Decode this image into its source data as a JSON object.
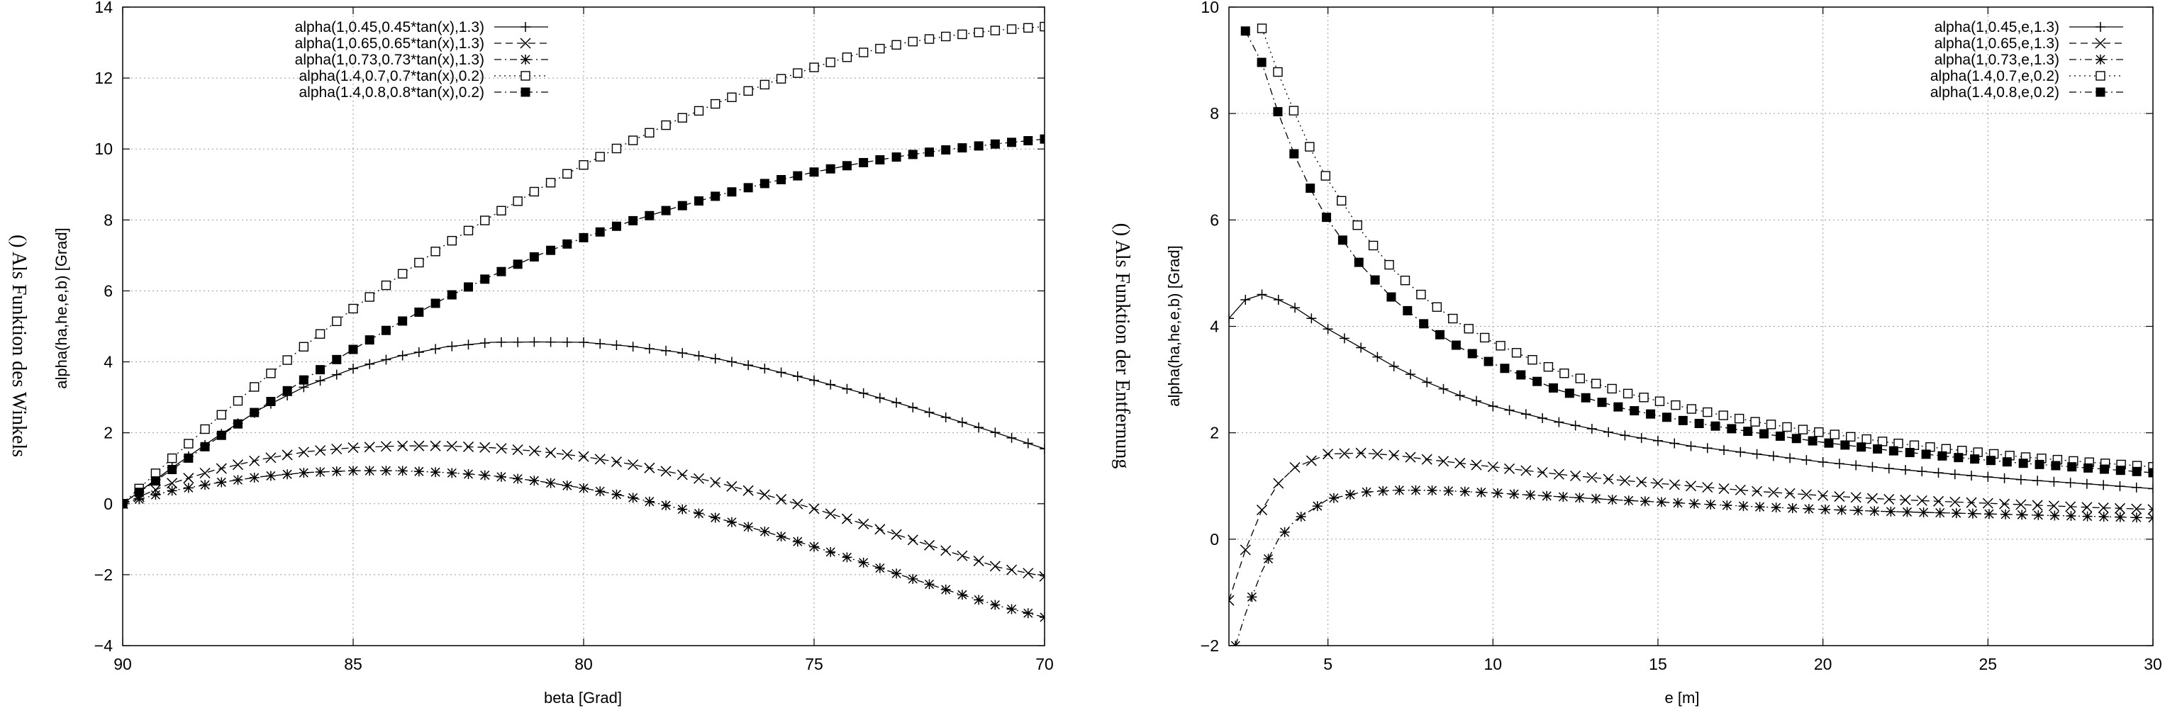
{
  "panels": [
    {
      "caption": "() Als Funktion des Winkels",
      "chart_data": {
        "type": "line",
        "xlabel": "beta [Grad]",
        "ylabel": "alpha(ha,he,e,b) [Grad]",
        "xlim": [
          90,
          70
        ],
        "ylim": [
          -4,
          14
        ],
        "x_reversed": true,
        "xticks": [
          90,
          85,
          80,
          75,
          70
        ],
        "yticks": [
          -4,
          -2,
          0,
          2,
          4,
          6,
          8,
          10,
          12,
          14
        ],
        "grid": true,
        "legend_position": "top-left",
        "series": [
          {
            "name": "alpha(1,0.45,0.45*tan(x),1.3)",
            "marker": "plus",
            "line": "solid",
            "x": [
              90,
              89,
              88,
              87,
              86,
              85,
              84,
              83,
              82,
              81,
              80,
              79,
              78,
              77,
              76,
              75,
              74,
              73,
              72,
              71,
              70
            ],
            "y": [
              0,
              0.95,
              1.85,
              2.68,
              3.33,
              3.81,
              4.16,
              4.42,
              4.55,
              4.56,
              4.55,
              4.44,
              4.28,
              4.06,
              3.79,
              3.48,
              3.14,
              2.77,
              2.38,
              1.98,
              1.55
            ]
          },
          {
            "name": "alpha(1,0.65,0.65*tan(x),1.3)",
            "marker": "cross",
            "line": "dashed",
            "x": [
              90,
              89,
              88,
              87,
              86,
              85,
              84,
              83,
              82,
              81,
              80,
              79,
              78,
              77,
              76,
              75,
              74,
              73,
              72,
              71,
              70
            ],
            "y": [
              0,
              0.55,
              0.95,
              1.25,
              1.47,
              1.58,
              1.63,
              1.63,
              1.58,
              1.48,
              1.33,
              1.12,
              0.86,
              0.56,
              0.23,
              -0.14,
              -0.54,
              -0.96,
              -1.38,
              -1.79,
              -2.05
            ]
          },
          {
            "name": "alpha(1,0.73,0.73*tan(x),1.3)",
            "marker": "star",
            "line": "dashdot",
            "x": [
              90,
              89,
              88,
              87,
              86,
              85,
              84,
              83,
              82,
              81,
              80,
              79,
              78,
              77,
              76,
              75,
              74,
              73,
              72,
              71,
              70
            ],
            "y": [
              0,
              0.35,
              0.58,
              0.76,
              0.88,
              0.93,
              0.93,
              0.88,
              0.79,
              0.64,
              0.44,
              0.19,
              -0.11,
              -0.44,
              -0.81,
              -1.21,
              -1.63,
              -2.06,
              -2.48,
              -2.88,
              -3.2
            ]
          },
          {
            "name": "alpha(1.4,0.7,0.7*tan(x),0.2)",
            "marker": "open-square",
            "line": "dotted",
            "x": [
              90,
              89,
              88,
              87,
              86,
              85,
              84,
              83,
              82,
              81,
              80,
              79,
              78,
              77,
              76,
              75,
              74,
              73,
              72,
              71,
              70
            ],
            "y": [
              0,
              1.2,
              2.35,
              3.45,
              4.5,
              5.5,
              6.42,
              7.3,
              8.1,
              8.85,
              9.55,
              10.2,
              10.8,
              11.35,
              11.85,
              12.3,
              12.7,
              13.0,
              13.2,
              13.35,
              13.45
            ]
          },
          {
            "name": "alpha(1.4,0.8,0.8*tan(x),0.2)",
            "marker": "filled-square",
            "line": "dashdot",
            "x": [
              90,
              89,
              88,
              87,
              86,
              85,
              84,
              83,
              82,
              81,
              80,
              79,
              78,
              77,
              76,
              75,
              74,
              73,
              72,
              71,
              70
            ],
            "y": [
              0,
              0.9,
              1.8,
              2.7,
              3.55,
              4.35,
              5.1,
              5.8,
              6.42,
              7.0,
              7.5,
              7.95,
              8.35,
              8.72,
              9.05,
              9.35,
              9.6,
              9.82,
              10.0,
              10.15,
              10.28
            ]
          }
        ]
      }
    },
    {
      "caption": "() Als Funktion der Entfernung",
      "chart_data": {
        "type": "line",
        "xlabel": "e [m]",
        "ylabel": "alpha(ha,he,e,b) [Grad]",
        "xlim": [
          2,
          30
        ],
        "ylim": [
          -2,
          10
        ],
        "xticks": [
          5,
          10,
          15,
          20,
          25,
          30
        ],
        "yticks": [
          -2,
          0,
          2,
          4,
          6,
          8,
          10
        ],
        "grid": true,
        "legend_position": "top-right",
        "series": [
          {
            "name": "alpha(1,0.45,e,1.3)",
            "marker": "plus",
            "line": "solid",
            "x": [
              2,
              2.5,
              3,
              3.5,
              4,
              5,
              6,
              7,
              8,
              9,
              10,
              12,
              14,
              16,
              18,
              20,
              22,
              24,
              26,
              28,
              30
            ],
            "y": [
              4.15,
              4.5,
              4.6,
              4.5,
              4.35,
              3.95,
              3.6,
              3.25,
              2.95,
              2.7,
              2.5,
              2.2,
              1.95,
              1.75,
              1.6,
              1.45,
              1.33,
              1.22,
              1.12,
              1.04,
              0.95
            ]
          },
          {
            "name": "alpha(1,0.65,e,1.3)",
            "marker": "cross",
            "line": "dashed",
            "x": [
              2,
              2.5,
              3,
              3.5,
              4,
              5,
              6,
              7,
              8,
              9,
              10,
              12,
              14,
              16,
              18,
              20,
              22,
              24,
              26,
              28,
              30
            ],
            "y": [
              -1.15,
              -0.2,
              0.55,
              1.05,
              1.35,
              1.6,
              1.62,
              1.58,
              1.5,
              1.43,
              1.36,
              1.22,
              1.1,
              1.0,
              0.9,
              0.82,
              0.75,
              0.7,
              0.65,
              0.6,
              0.56
            ]
          },
          {
            "name": "alpha(1,0.73,e,1.3)",
            "marker": "star",
            "line": "dashdot",
            "x": [
              2.2,
              2.5,
              3,
              3.5,
              4,
              5,
              6,
              7,
              8,
              9,
              10,
              12,
              14,
              16,
              18,
              20,
              22,
              24,
              26,
              28,
              30
            ],
            "y": [
              -2.0,
              -1.4,
              -0.6,
              0.0,
              0.35,
              0.75,
              0.88,
              0.92,
              0.92,
              0.9,
              0.87,
              0.8,
              0.73,
              0.67,
              0.61,
              0.56,
              0.52,
              0.49,
              0.46,
              0.43,
              0.4
            ]
          },
          {
            "name": "alpha(1.4,0.7,e,0.2)",
            "marker": "open-square",
            "line": "dotted",
            "x": [
              3,
              3.5,
              4,
              4.5,
              5,
              6,
              7,
              8,
              9,
              10,
              12,
              14,
              16,
              18,
              20,
              22,
              24,
              26,
              28,
              30
            ],
            "y": [
              9.6,
              8.75,
              8.0,
              7.3,
              6.75,
              5.8,
              5.05,
              4.5,
              4.05,
              3.7,
              3.15,
              2.75,
              2.45,
              2.2,
              2.0,
              1.82,
              1.68,
              1.55,
              1.45,
              1.36
            ]
          },
          {
            "name": "alpha(1.4,0.8,e,0.2)",
            "marker": "filled-square",
            "line": "dashdot",
            "x": [
              2.5,
              3,
              3.5,
              4,
              4.5,
              5,
              6,
              7,
              8,
              9,
              10,
              12,
              14,
              16,
              18,
              20,
              22,
              24,
              26,
              28,
              30
            ],
            "y": [
              9.55,
              8.95,
              8.0,
              7.2,
              6.55,
              6.0,
              5.15,
              4.5,
              4.0,
              3.6,
              3.3,
              2.8,
              2.45,
              2.2,
              2.0,
              1.82,
              1.67,
              1.54,
              1.43,
              1.34,
              1.25
            ]
          }
        ]
      }
    }
  ]
}
